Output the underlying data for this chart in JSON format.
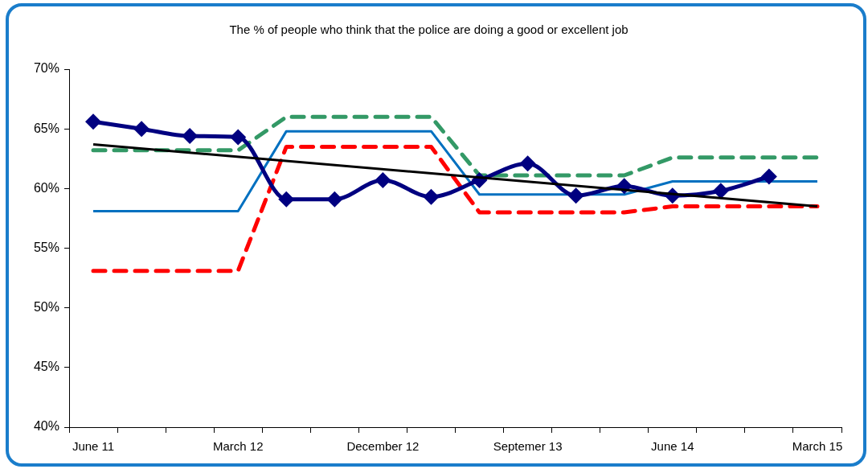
{
  "chart_data": {
    "type": "line",
    "title": "The % of people who think that the police are doing a good or excellent job",
    "categories": [
      "June 11",
      null,
      null,
      "March 12",
      null,
      null,
      "December 12",
      null,
      null,
      "Septemer 13",
      null,
      null,
      "June 14",
      null,
      null,
      "March 15"
    ],
    "series": [
      {
        "color": "#0070c0",
        "line_style": "solid",
        "marker": "none",
        "values": [
          58.1,
          58.1,
          58.1,
          58.1,
          64.8,
          64.8,
          64.8,
          64.8,
          59.5,
          59.5,
          59.5,
          59.5,
          60.6,
          60.6,
          60.6,
          60.6
        ]
      },
      {
        "color": "#ff0000",
        "line_style": "dashed",
        "marker": "none",
        "values": [
          53.1,
          53.1,
          53.1,
          53.1,
          63.5,
          63.5,
          63.5,
          63.5,
          58.0,
          58.0,
          58.0,
          58.0,
          58.5,
          58.5,
          58.5,
          58.5
        ]
      },
      {
        "color": "#339966",
        "line_style": "dashed",
        "marker": "none",
        "values": [
          63.2,
          63.2,
          63.2,
          63.2,
          66.0,
          66.0,
          66.0,
          66.0,
          61.1,
          61.1,
          61.1,
          61.1,
          62.6,
          62.6,
          62.6,
          62.6
        ]
      },
      {
        "color": "#000080",
        "line_style": "solid",
        "marker": "diamond",
        "values": [
          65.6,
          65.0,
          64.4,
          64.3,
          59.1,
          59.1,
          60.7,
          59.3,
          60.7,
          62.1,
          59.4,
          60.2,
          59.4,
          59.8,
          61.0,
          null
        ]
      },
      {
        "type": "line",
        "color": "#000000",
        "line_style": "solid",
        "marker": "none",
        "x": [
          "June 11",
          "March 15"
        ],
        "values": [
          63.7,
          58.5
        ]
      }
    ],
    "ylim": [
      40,
      70
    ],
    "yticks": [
      {
        "value": 40,
        "label": "40%"
      },
      {
        "value": 45,
        "label": "45%"
      },
      {
        "value": 50,
        "label": "50%"
      },
      {
        "value": 55,
        "label": "55%"
      },
      {
        "value": 60,
        "label": "60%"
      },
      {
        "value": 65,
        "label": "65%"
      },
      {
        "value": 70,
        "label": "70%"
      }
    ],
    "grid": false,
    "legend": false
  }
}
